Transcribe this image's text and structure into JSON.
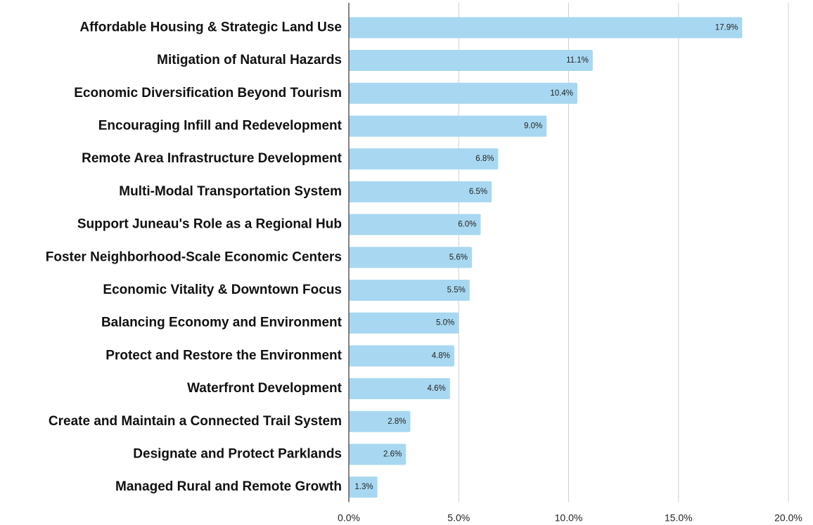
{
  "chart_data": {
    "type": "hbar",
    "categories": [
      "Affordable Housing & Strategic Land Use",
      "Mitigation of Natural Hazards",
      "Economic Diversification Beyond Tourism",
      "Encouraging Infill and Redevelopment",
      "Remote Area Infrastructure Development",
      "Multi-Modal Transportation System",
      "Support Juneau's Role as a Regional Hub",
      "Foster Neighborhood-Scale Economic Centers",
      "Economic Vitality & Downtown Focus",
      "Balancing Economy and Environment",
      "Protect and Restore the Environment",
      "Waterfront Development",
      "Create and Maintain a Connected Trail System",
      "Designate and Protect Parklands",
      "Managed Rural and Remote Growth"
    ],
    "values": [
      17.9,
      11.1,
      10.4,
      9.0,
      6.8,
      6.5,
      6.0,
      5.6,
      5.5,
      5.0,
      4.8,
      4.6,
      2.8,
      2.6,
      1.3
    ],
    "value_labels": [
      "17.9%",
      "11.1%",
      "10.4%",
      "9.0%",
      "6.8%",
      "6.5%",
      "6.0%",
      "5.6%",
      "5.5%",
      "5.0%",
      "4.8%",
      "4.6%",
      "2.8%",
      "2.6%",
      "1.3%"
    ],
    "color": "#a8d8f1",
    "xlim": [
      0,
      20
    ],
    "xticks": [
      {
        "value": 0,
        "label": "0.0%"
      },
      {
        "value": 5,
        "label": "5.0%"
      },
      {
        "value": 10,
        "label": "10.0%"
      },
      {
        "value": 15,
        "label": "15.0%"
      },
      {
        "value": 20,
        "label": "20.0%"
      }
    ],
    "grid": true
  }
}
